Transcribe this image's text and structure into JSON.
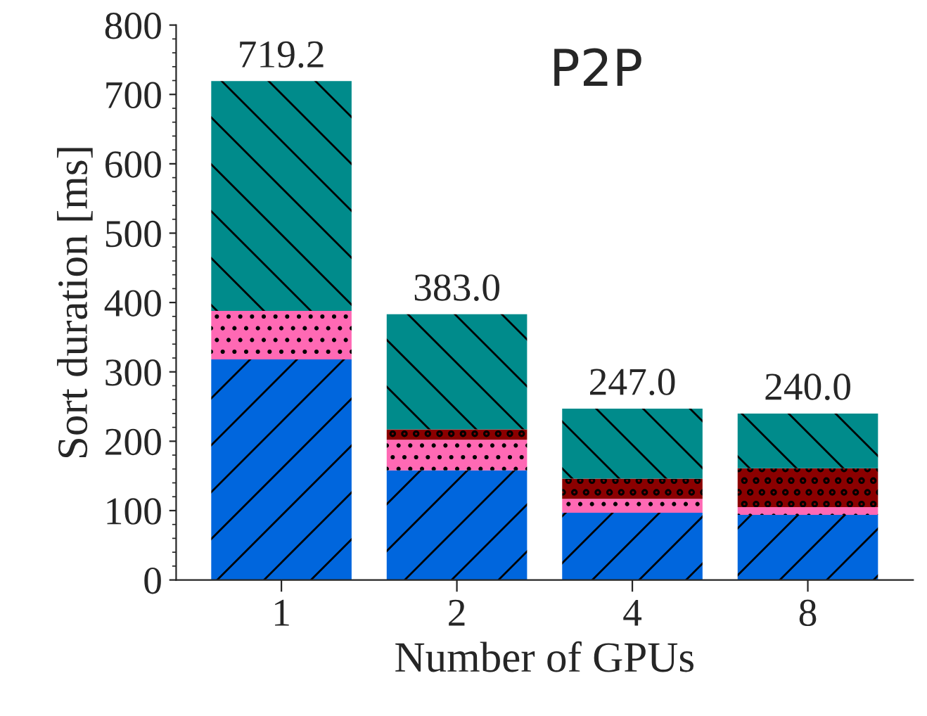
{
  "chart_data": {
    "type": "bar",
    "stacked": true,
    "title": "P2P",
    "xlabel": "Number of GPUs",
    "ylabel": "Sort duration [ms]",
    "categories": [
      "1",
      "2",
      "4",
      "8"
    ],
    "series": [
      {
        "color": "#0066dd",
        "values": [
          318,
          158,
          97,
          94
        ]
      },
      {
        "color": "#ff69b4",
        "values": [
          70,
          44,
          20,
          11
        ]
      },
      {
        "color": "#8b0000",
        "values": [
          0,
          15,
          29,
          56
        ]
      },
      {
        "color": "#008b8b",
        "values": [
          331.2,
          166,
          101,
          79
        ]
      }
    ],
    "totals": [
      "719.2",
      "383.0",
      "247.0",
      "240.0"
    ],
    "ylim": [
      0,
      800
    ],
    "yticks": [
      0,
      100,
      200,
      300,
      400,
      500,
      600,
      700,
      800
    ],
    "grid": false,
    "legend": false
  }
}
